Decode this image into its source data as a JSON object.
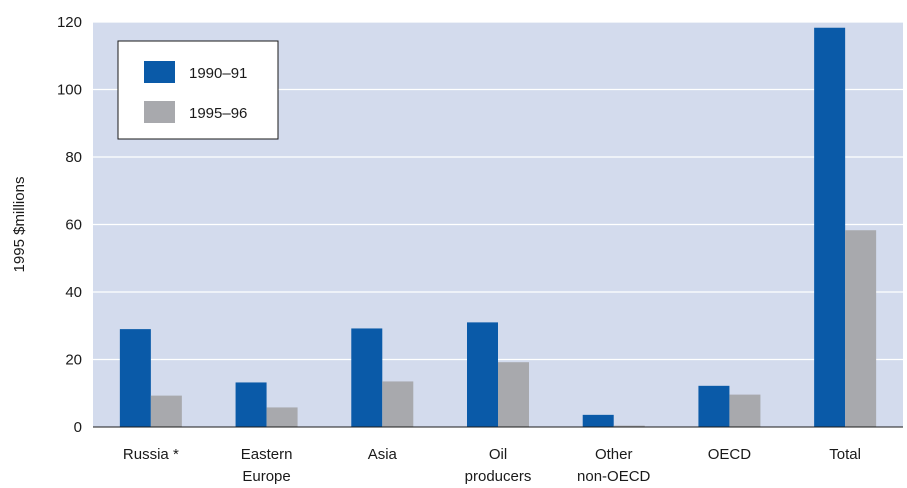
{
  "chart_data": {
    "type": "bar",
    "ylabel": "1995 $millions",
    "ylim": [
      0,
      120
    ],
    "yticks": [
      "0",
      "20",
      "40",
      "60",
      "80",
      "100",
      "120"
    ],
    "categories": [
      [
        "Russia *"
      ],
      [
        "Eastern",
        "Europe"
      ],
      [
        "Asia"
      ],
      [
        "Oil",
        "producers"
      ],
      [
        "Other",
        "non-OECD"
      ],
      [
        "OECD"
      ],
      [
        "Total"
      ]
    ],
    "series": [
      {
        "name": "1990–91",
        "color": "#0a5aa8",
        "values": [
          29,
          13.2,
          29.2,
          31,
          3.6,
          12.2,
          118.3
        ]
      },
      {
        "name": "1995–96",
        "color": "#a8a9ad",
        "values": [
          9.3,
          5.8,
          13.5,
          19.2,
          0.4,
          9.6,
          58.3
        ]
      }
    ],
    "grid": true,
    "legend_position": "top-left",
    "plot_background": "#d3dbed",
    "grid_color": "#ffffff"
  }
}
